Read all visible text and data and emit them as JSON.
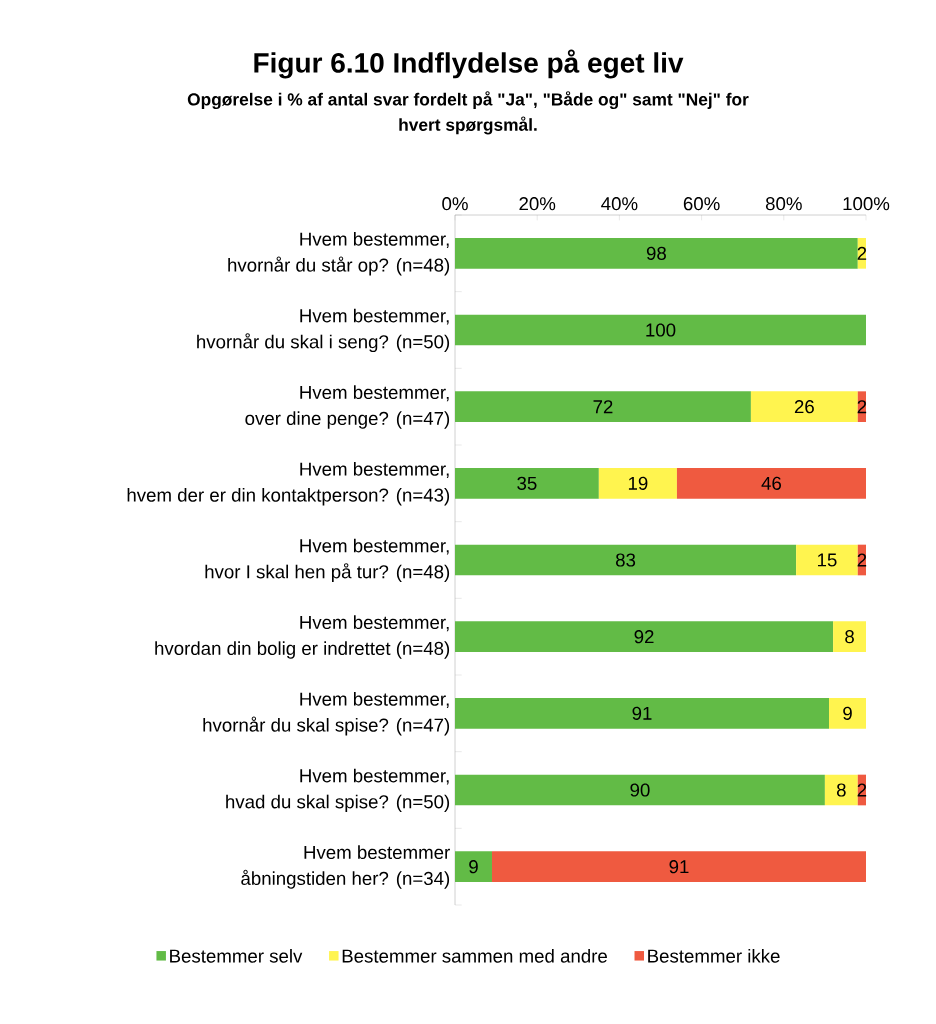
{
  "chart_data": {
    "type": "bar",
    "orientation": "horizontal",
    "stacked": true,
    "title": "Figur 6.10 Indflydelse på eget liv",
    "subtitle": "Opgørelse i % af antal svar fordelt på \"Ja\", \"Både og\" samt \"Nej\" for\nhvert spørgsmål.",
    "categories": [
      "Hvem bestemmer,\nhvornår du står op? (n=48)",
      "Hvem bestemmer,\nhvornår du skal i seng? (n=50)",
      "Hvem bestemmer,\nover dine penge? (n=47)",
      "Hvem bestemmer,\nhvem der er din kontaktperson? (n=43)",
      "Hvem bestemmer,\nhvor I skal hen på tur? (n=48)",
      "Hvem bestemmer,\nhvordan din bolig er indrettet (n=48)",
      "Hvem bestemmer,\nhvornår du skal spise? (n=47)",
      "Hvem bestemmer,\nhvad du skal spise? (n=50)",
      "Hvem bestemmer\nåbningstiden her? (n=34)"
    ],
    "series": [
      {
        "name": "Bestemmer selv",
        "color": "#62bb46",
        "values": [
          98,
          100,
          72,
          35,
          83,
          92,
          91,
          90,
          9
        ]
      },
      {
        "name": "Bestemmer sammen med andre",
        "color": "#fff44f",
        "values": [
          2,
          null,
          26,
          19,
          15,
          8,
          9,
          8,
          null
        ]
      },
      {
        "name": "Bestemmer ikke",
        "color": "#ef5a40",
        "values": [
          null,
          null,
          2,
          46,
          2,
          null,
          null,
          2,
          91
        ]
      }
    ],
    "xlim": [
      0,
      100
    ],
    "xticks": [
      {
        "value": 0,
        "label": "0%"
      },
      {
        "value": 20,
        "label": "20%"
      },
      {
        "value": 40,
        "label": "40%"
      },
      {
        "value": 60,
        "label": "60%"
      },
      {
        "value": 80,
        "label": "80%"
      },
      {
        "value": 100,
        "label": "100%"
      }
    ],
    "data_labels": true,
    "legend": "bottom"
  }
}
